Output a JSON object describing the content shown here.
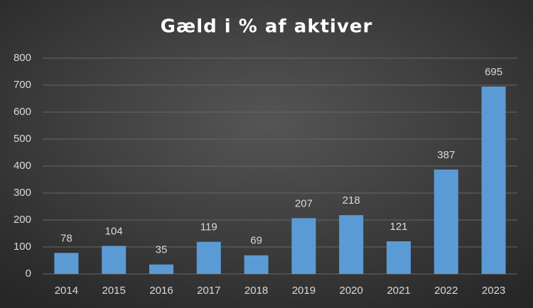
{
  "chart_data": {
    "type": "bar",
    "title": "Gæld i % af aktiver",
    "categories": [
      "2014",
      "2015",
      "2016",
      "2017",
      "2018",
      "2019",
      "2020",
      "2021",
      "2022",
      "2023"
    ],
    "values": [
      78,
      104,
      35,
      119,
      69,
      207,
      218,
      121,
      387,
      695
    ],
    "color": "#5b9bd5",
    "ylim": [
      0,
      800
    ],
    "yticks": [
      0,
      100,
      200,
      300,
      400,
      500,
      600,
      700,
      800
    ],
    "grid": true
  }
}
